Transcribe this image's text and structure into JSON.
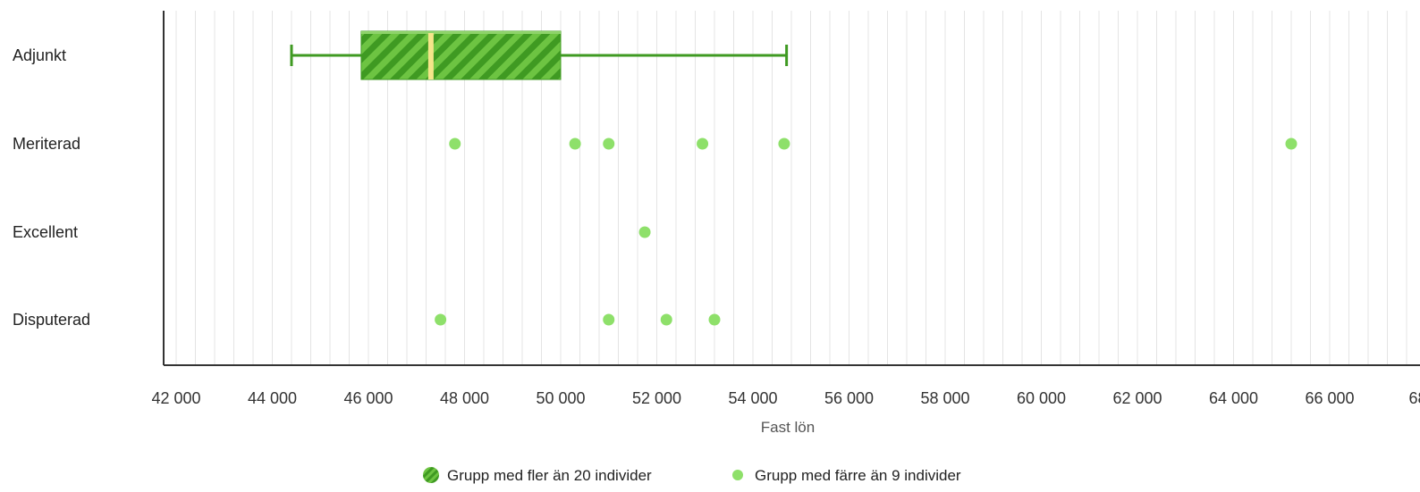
{
  "chart_data": {
    "type": "boxplot-strip",
    "xlabel": "Fast lön",
    "x_ticks": [
      "42 000",
      "44 000",
      "46 000",
      "48 000",
      "50 000",
      "52 000",
      "54 000",
      "56 000",
      "58 000",
      "60 000",
      "62 000",
      "64 000",
      "66 000",
      "68…"
    ],
    "xlim": [
      42000,
      68000
    ],
    "minor_gridline_step": 400,
    "categories": [
      "Adjunkt",
      "Meriterad",
      "Excellent",
      "Disputerad"
    ],
    "boxes": [
      {
        "category": "Adjunkt",
        "min": 44400,
        "q1": 45850,
        "median": 47300,
        "q3": 50000,
        "max": 54700
      }
    ],
    "points": [
      {
        "category": "Meriterad",
        "values": [
          47800,
          50300,
          51000,
          52950,
          54650,
          65200
        ]
      },
      {
        "category": "Excellent",
        "values": [
          51750
        ]
      },
      {
        "category": "Disputerad",
        "values": [
          47500,
          51000,
          52200,
          53200
        ]
      }
    ],
    "legend": [
      {
        "label": "Grupp med fler än 20 individer",
        "marker": "striped-circle"
      },
      {
        "label": "Grupp med färre än 9 individer",
        "marker": "dot"
      }
    ],
    "legend_position": "bottom-center",
    "grid": true,
    "colors": {
      "box_dark": "#3f9a22",
      "box_light": "#6dc442",
      "whisker": "#3f9a22",
      "median": "#f5e58a",
      "point": "#8ee06a",
      "grid": "#e4e4e4",
      "axis": "#333333"
    }
  }
}
